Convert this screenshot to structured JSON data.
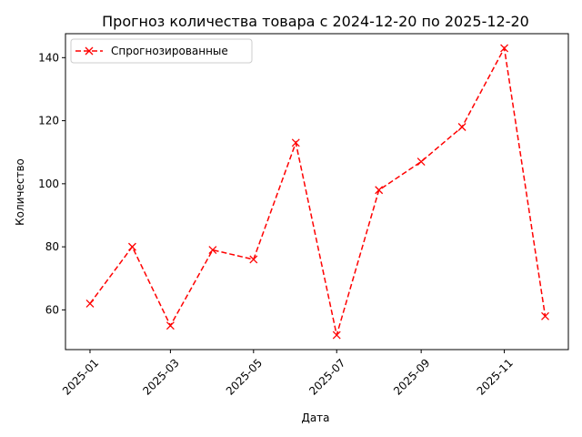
{
  "chart_data": {
    "type": "line",
    "title": "Прогноз количества товара с 2024-12-20 по 2025-12-20",
    "xlabel": "Дата",
    "ylabel": "Количество",
    "x": [
      "2025-01-01",
      "2025-02-01",
      "2025-03-01",
      "2025-04-01",
      "2025-05-01",
      "2025-06-01",
      "2025-07-01",
      "2025-08-01",
      "2025-09-01",
      "2025-10-01",
      "2025-11-01",
      "2025-12-01"
    ],
    "xticks": [
      "2025-01",
      "2025-03",
      "2025-05",
      "2025-07",
      "2025-09",
      "2025-11"
    ],
    "yticks": [
      60,
      80,
      100,
      120,
      140
    ],
    "ylim": [
      47.4,
      147.6
    ],
    "xlim": [
      "2024-12-14",
      "2025-12-18"
    ],
    "grid": false,
    "legend_position": "top-left",
    "series": [
      {
        "name": "Спрогнозированные",
        "color": "#ff0000",
        "line_style": "dashed",
        "marker": "x",
        "values": [
          62,
          80,
          55,
          79,
          76,
          113,
          52,
          98,
          107,
          118,
          143,
          58
        ]
      }
    ]
  }
}
